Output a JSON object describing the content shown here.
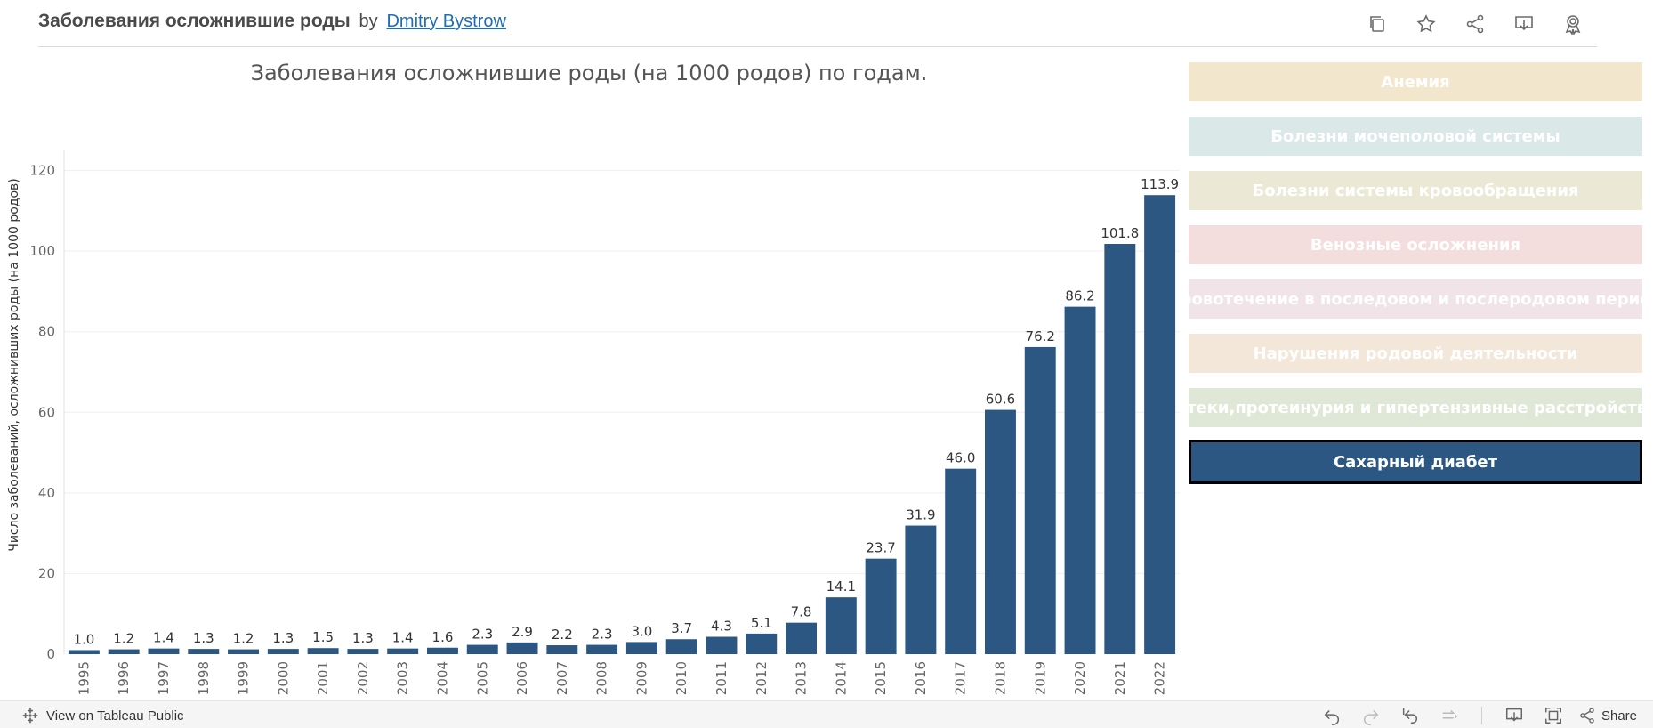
{
  "header": {
    "viz_title": "Заболевания осложнившие роды",
    "by": "by",
    "author": "Dmitry Bystrow",
    "icons": [
      "duplicate-icon",
      "star-icon",
      "share-icon",
      "download-icon",
      "badge-icon"
    ]
  },
  "chart_data": {
    "type": "bar",
    "title": "Заболевания осложнившие роды (на 1000 родов) по годам.",
    "xlabel": "",
    "ylabel": "Число заболеваний, осложнивших роды (на 1000 родов)",
    "ylim": [
      0,
      123
    ],
    "yticks": [
      0,
      20,
      40,
      60,
      80,
      100,
      120
    ],
    "grid": true,
    "bar_color": "#2b5782",
    "categories": [
      "1995",
      "1996",
      "1997",
      "1998",
      "1999",
      "2000",
      "2001",
      "2002",
      "2003",
      "2004",
      "2005",
      "2006",
      "2007",
      "2008",
      "2009",
      "2010",
      "2011",
      "2012",
      "2013",
      "2014",
      "2015",
      "2016",
      "2017",
      "2018",
      "2019",
      "2020",
      "2021",
      "2022"
    ],
    "values": [
      1.0,
      1.2,
      1.4,
      1.3,
      1.2,
      1.3,
      1.5,
      1.3,
      1.4,
      1.6,
      2.3,
      2.9,
      2.2,
      2.3,
      3.0,
      3.7,
      4.3,
      5.1,
      7.8,
      14.1,
      23.7,
      31.9,
      46.0,
      60.6,
      76.2,
      86.2,
      101.8,
      113.9
    ],
    "value_labels": [
      "1.0",
      "1.2",
      "1.4",
      "1.3",
      "1.2",
      "1.3",
      "1.5",
      "1.3",
      "1.4",
      "1.6",
      "2.3",
      "2.9",
      "2.2",
      "2.3",
      "3.0",
      "3.7",
      "4.3",
      "5.1",
      "7.8",
      "14.1",
      "23.7",
      "31.9",
      "46.0",
      "60.6",
      "76.2",
      "86.2",
      "101.8",
      "113.9"
    ]
  },
  "filters": [
    {
      "label": "Анемия",
      "bg": "#f2e7cd",
      "active": false
    },
    {
      "label": "Болезни мочеполовой системы",
      "bg": "#dbe8e8",
      "active": false
    },
    {
      "label": "Болезни системы кровообращения",
      "bg": "#ebe9d6",
      "active": false
    },
    {
      "label": "Венозные осложнения",
      "bg": "#f4dedd",
      "active": false
    },
    {
      "label": "Кровотечение в последовом и послеродовом период",
      "bg": "#f0e4e8",
      "active": false
    },
    {
      "label": "Нарушения родовой деятельности",
      "bg": "#f3e7d9",
      "active": false
    },
    {
      "label": "Отеки,протеинурия и гипертензивные расстройства",
      "bg": "#dfe8d7",
      "active": false
    },
    {
      "label": "Сахарный диабет",
      "bg": "#2b5782",
      "active": true
    }
  ],
  "footer": {
    "view_on": "View on Tableau Public",
    "share": "Share",
    "icons": [
      "undo-icon",
      "redo-icon",
      "revert-icon",
      "refresh-icon",
      "download-icon",
      "fullscreen-icon",
      "share-icon"
    ]
  }
}
